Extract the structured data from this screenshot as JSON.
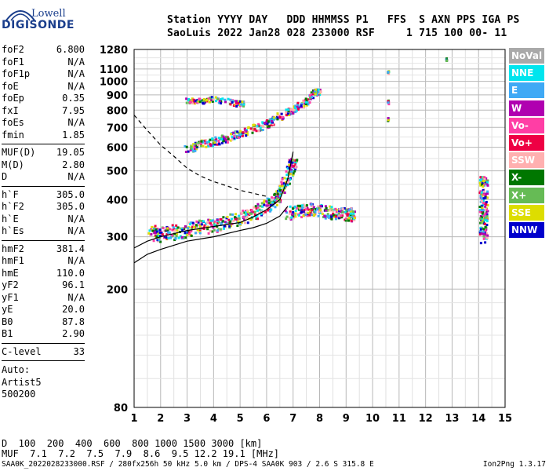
{
  "logo": {
    "line1": "Lowell",
    "line2": "DIGISONDE"
  },
  "header": {
    "line1": "Station YYYY DAY   DDD HHMMSS P1   FFS  S AXN PPS IGA PS",
    "line2": "SaoLuis 2022 Jan28 028 233000 RSF     1 715 100 00- 11"
  },
  "params": {
    "group1": [
      {
        "label": "foF2",
        "value": "6.800"
      },
      {
        "label": "foF1",
        "value": "N/A"
      },
      {
        "label": "foF1p",
        "value": "N/A"
      },
      {
        "label": "foE",
        "value": "N/A"
      },
      {
        "label": "foEp",
        "value": "0.35"
      },
      {
        "label": "fxI",
        "value": "7.95"
      },
      {
        "label": "foEs",
        "value": "N/A"
      },
      {
        "label": "fmin",
        "value": "1.85"
      }
    ],
    "group2": [
      {
        "label": "MUF(D)",
        "value": "19.05"
      },
      {
        "label": "M(D)",
        "value": "2.80"
      },
      {
        "label": "D",
        "value": "N/A"
      }
    ],
    "group3": [
      {
        "label": "h`F",
        "value": "305.0"
      },
      {
        "label": "h`F2",
        "value": "305.0"
      },
      {
        "label": "h`E",
        "value": "N/A"
      },
      {
        "label": "h`Es",
        "value": "N/A"
      }
    ],
    "group4": [
      {
        "label": "hmF2",
        "value": "381.4"
      },
      {
        "label": "hmF1",
        "value": "N/A"
      },
      {
        "label": "hmE",
        "value": "110.0"
      },
      {
        "label": "yF2",
        "value": "96.1"
      },
      {
        "label": "yF1",
        "value": "N/A"
      },
      {
        "label": "yE",
        "value": "20.0"
      },
      {
        "label": "B0",
        "value": "87.8"
      },
      {
        "label": "B1",
        "value": "2.90"
      }
    ],
    "group5": [
      {
        "label": "C-level",
        "value": "33"
      }
    ],
    "auto": [
      "Auto:",
      "Artist5",
      "500200"
    ]
  },
  "legend": [
    {
      "label": "NoVal",
      "color": "#a9a9a9"
    },
    {
      "label": "NNE",
      "color": "#00e5ee"
    },
    {
      "label": "E",
      "color": "#3fa9f5"
    },
    {
      "label": "W",
      "color": "#b000b0"
    },
    {
      "label": "Vo-",
      "color": "#ff3ea5"
    },
    {
      "label": "Vo+",
      "color": "#ee0044"
    },
    {
      "label": "SSW",
      "color": "#ffb0b0"
    },
    {
      "label": "X-",
      "color": "#007700"
    },
    {
      "label": "X+",
      "color": "#66bb55"
    },
    {
      "label": "SSE",
      "color": "#dddd00"
    },
    {
      "label": "NNW",
      "color": "#0000cc"
    }
  ],
  "chart_data": {
    "type": "scatter",
    "xlabel": "",
    "ylabel": "",
    "xlim": [
      1,
      15
    ],
    "ylim": [
      80,
      1280
    ],
    "yscale": "log",
    "x_ticks": [
      "1",
      "2",
      "3",
      "4",
      "5",
      "6",
      "7",
      "8",
      "9",
      "10",
      "11",
      "12",
      "13",
      "14",
      "15"
    ],
    "y_ticks": [
      "80",
      "200",
      "300",
      "400",
      "500",
      "600",
      "700",
      "800",
      "900",
      "1000",
      "1100",
      "1280"
    ],
    "grid": true,
    "series": [
      {
        "name": "F2 trace",
        "points": [
          [
            1.6,
            310
          ],
          [
            2.0,
            305
          ],
          [
            2.5,
            310
          ],
          [
            3.0,
            315
          ],
          [
            3.5,
            322
          ],
          [
            4.0,
            328
          ],
          [
            4.5,
            335
          ],
          [
            5.0,
            345
          ],
          [
            5.5,
            360
          ],
          [
            6.0,
            378
          ],
          [
            6.3,
            395
          ],
          [
            6.6,
            430
          ],
          [
            6.8,
            470
          ],
          [
            7.0,
            530
          ]
        ]
      },
      {
        "name": "Oblique trace",
        "points": [
          [
            3.0,
            590
          ],
          [
            3.5,
            610
          ],
          [
            4.0,
            625
          ],
          [
            4.5,
            645
          ],
          [
            5.0,
            665
          ],
          [
            5.5,
            690
          ],
          [
            6.0,
            720
          ],
          [
            6.5,
            760
          ],
          [
            7.0,
            800
          ],
          [
            7.5,
            850
          ],
          [
            7.9,
            920
          ]
        ]
      },
      {
        "name": "Spread F",
        "points": [
          [
            6.8,
            360
          ],
          [
            7.2,
            365
          ],
          [
            7.6,
            370
          ],
          [
            8.0,
            368
          ],
          [
            8.4,
            362
          ],
          [
            8.8,
            358
          ],
          [
            9.2,
            355
          ]
        ]
      },
      {
        "name": "Upper band",
        "points": [
          [
            3.0,
            860
          ],
          [
            3.5,
            855
          ],
          [
            4.0,
            870
          ],
          [
            5.0,
            840
          ]
        ]
      },
      {
        "name": "10.5 MHz trace",
        "points": [
          [
            10.6,
            1070
          ],
          [
            10.6,
            850
          ],
          [
            10.6,
            740
          ]
        ]
      },
      {
        "name": "12.8 MHz trace",
        "points": [
          [
            12.8,
            1180
          ]
        ]
      },
      {
        "name": "14.2 MHz trace",
        "points": [
          [
            14.2,
            300
          ],
          [
            14.2,
            330
          ],
          [
            14.2,
            360
          ],
          [
            14.2,
            400
          ],
          [
            14.2,
            460
          ]
        ]
      }
    ],
    "lines": [
      {
        "name": "profile",
        "points": [
          [
            1.0,
            245
          ],
          [
            1.5,
            262
          ],
          [
            2.0,
            272
          ],
          [
            3.0,
            290
          ],
          [
            4.0,
            300
          ],
          [
            5.0,
            315
          ],
          [
            5.5,
            322
          ],
          [
            6.0,
            333
          ],
          [
            6.5,
            352
          ],
          [
            6.8,
            380
          ]
        ]
      },
      {
        "name": "model trace",
        "points": [
          [
            1.0,
            275
          ],
          [
            1.5,
            290
          ],
          [
            2.0,
            300
          ],
          [
            3.0,
            315
          ],
          [
            4.0,
            325
          ],
          [
            5.0,
            335
          ],
          [
            5.5,
            350
          ],
          [
            6.0,
            370
          ],
          [
            6.5,
            400
          ],
          [
            6.8,
            470
          ],
          [
            7.0,
            580
          ]
        ]
      },
      {
        "name": "oblique curve",
        "points": [
          [
            1.0,
            770
          ],
          [
            1.4,
            700
          ],
          [
            2.0,
            610
          ],
          [
            2.5,
            560
          ],
          [
            3.0,
            510
          ],
          [
            3.5,
            480
          ],
          [
            4.0,
            460
          ],
          [
            4.5,
            445
          ],
          [
            5.0,
            430
          ],
          [
            5.5,
            420
          ],
          [
            6.0,
            410
          ]
        ]
      }
    ]
  },
  "muf_table": {
    "d_label": "D",
    "d_values": "  100  200  400  600  800 1000 1500 3000 [km]",
    "muf_label": "MUF",
    "muf_values": "  7.1  7.2  7.5  7.9  8.6  9.5 12.2 19.1 [MHz]"
  },
  "footer": {
    "left": "SAA0K_2022028233000.RSF / 280fx256h 50 kHz 5.0 km / DPS-4 SAA0K 903 / 2.6 S 315.8 E",
    "right": "Ion2Png 1.3.17"
  }
}
